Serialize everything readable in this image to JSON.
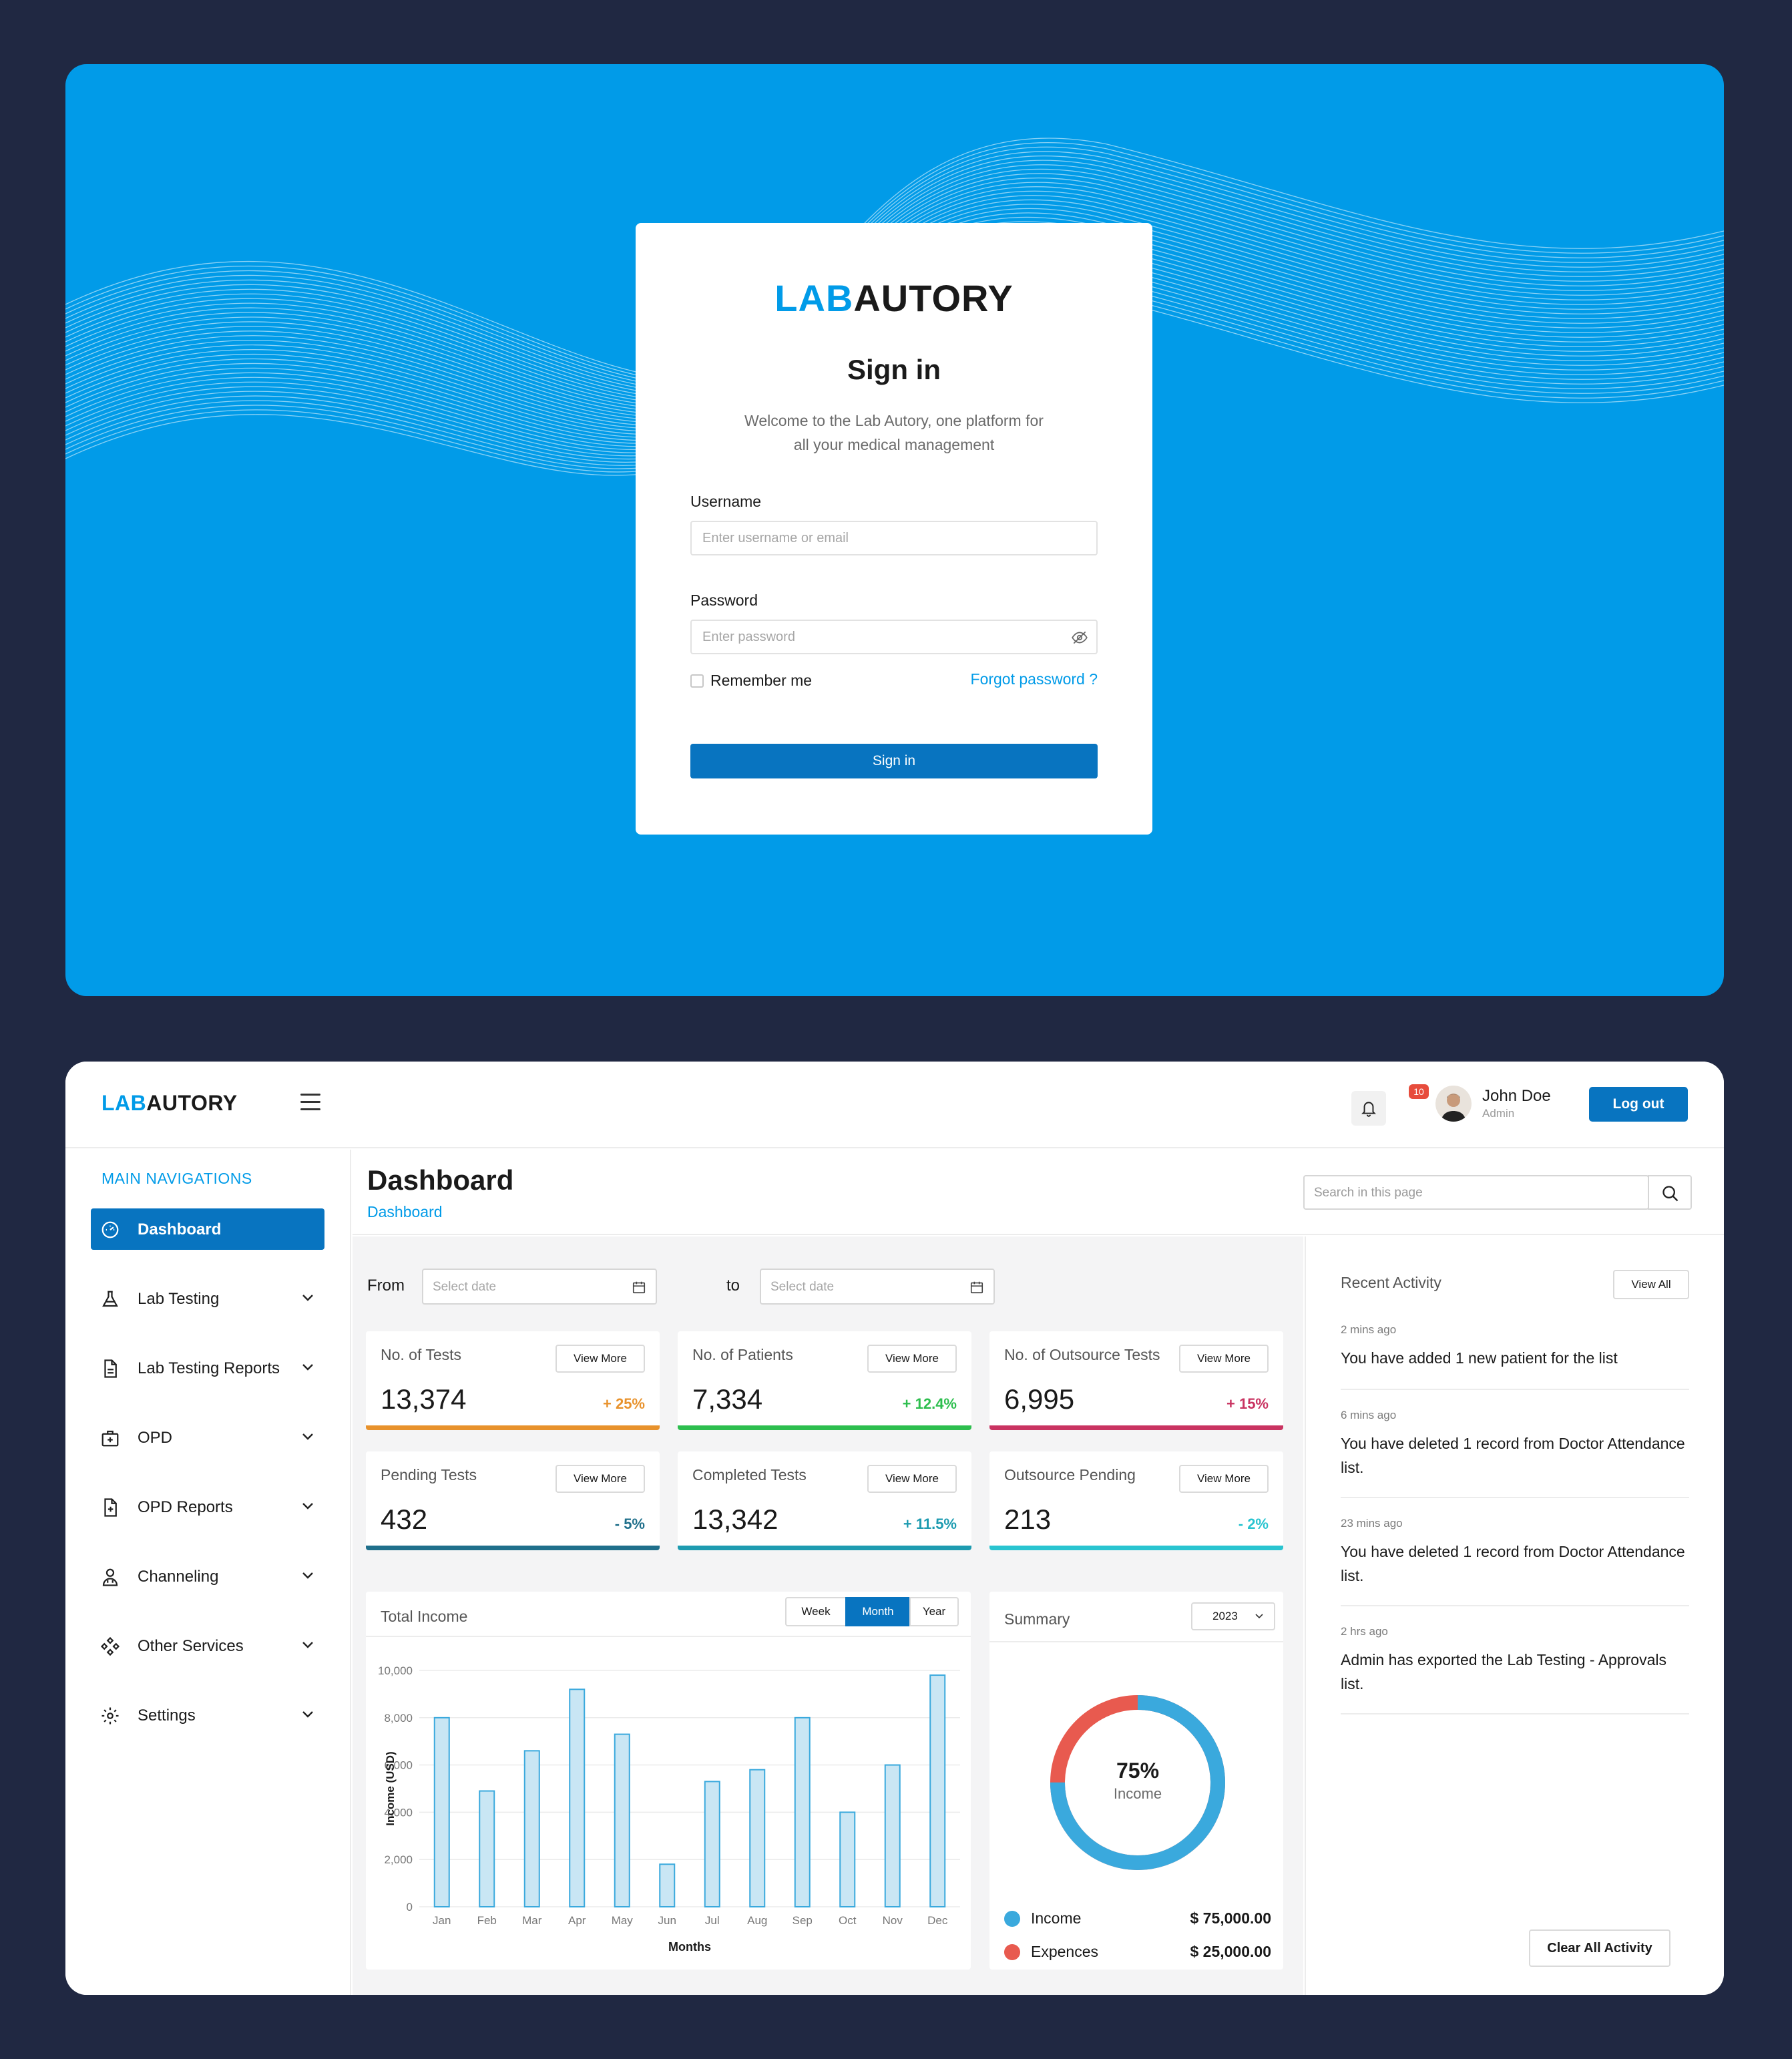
{
  "brand": {
    "lab": "LAB",
    "autory": "AUTORY"
  },
  "login": {
    "title": "Sign in",
    "subtitle_line1": "Welcome to the Lab Autory, one platform for",
    "subtitle_line2": "all your medical management",
    "username_label": "Username",
    "username_placeholder": "Enter username or email",
    "password_label": "Password",
    "password_placeholder": "Enter password",
    "remember_label": "Remember me",
    "forgot_label": "Forgot password ?",
    "signin_button": "Sign in"
  },
  "header": {
    "notification_count": "10",
    "user_name": "John Doe",
    "user_role": "Admin",
    "logout_label": "Log out"
  },
  "sidebar": {
    "heading": "MAIN NAVIGATIONS",
    "items": [
      {
        "label": "Dashboard",
        "icon": "speedometer-icon",
        "active": true
      },
      {
        "label": "Lab Testing",
        "icon": "flask-icon"
      },
      {
        "label": "Lab Testing Reports",
        "icon": "document-icon"
      },
      {
        "label": "OPD",
        "icon": "medical-kit-icon"
      },
      {
        "label": "OPD Reports",
        "icon": "report-plus-icon"
      },
      {
        "label": "Channeling",
        "icon": "doctor-icon"
      },
      {
        "label": "Other Services",
        "icon": "services-icon"
      },
      {
        "label": "Settings",
        "icon": "gear-icon"
      }
    ]
  },
  "page": {
    "title": "Dashboard",
    "breadcrumb": "Dashboard",
    "search_placeholder": "Search in this page"
  },
  "filters": {
    "from_label": "From",
    "to_label": "to",
    "from_placeholder": "Select date",
    "to_placeholder": "Select date"
  },
  "stats": [
    {
      "title": "No. of Tests",
      "value": "13,374",
      "change": "+ 25%",
      "color": "#e8922c",
      "button": "View More"
    },
    {
      "title": "No. of Patients",
      "value": "7,334",
      "change": "+ 12.4%",
      "color": "#2dbe4e",
      "button": "View More"
    },
    {
      "title": "No. of Outsource Tests",
      "value": "6,995",
      "change": "+ 15%",
      "color": "#c93361",
      "button": "View More"
    },
    {
      "title": "Pending Tests",
      "value": "432",
      "change": "- 5%",
      "color": "#1f6f8b",
      "button": "View More"
    },
    {
      "title": "Completed Tests",
      "value": "13,342",
      "change": "+ 11.5%",
      "color": "#1d9bb0",
      "button": "View More"
    },
    {
      "title": "Outsource Pending",
      "value": "213",
      "change": "- 2%",
      "color": "#29c4d0",
      "button": "View More"
    }
  ],
  "income": {
    "title": "Total Income",
    "tabs": [
      "Week",
      "Month",
      "Year"
    ],
    "active_tab": "Month"
  },
  "chart_data": {
    "type": "bar",
    "categories": [
      "Jan",
      "Feb",
      "Mar",
      "Apr",
      "May",
      "Jun",
      "Jul",
      "Aug",
      "Sep",
      "Oct",
      "Nov",
      "Dec"
    ],
    "values": [
      8000,
      4900,
      6600,
      9200,
      7300,
      1800,
      5300,
      5800,
      8000,
      4000,
      6000,
      9800
    ],
    "xlabel": "Months",
    "ylabel": "Income (USD)",
    "ylim": [
      0,
      10000
    ],
    "yticks": [
      "0",
      "2,000",
      "4,000",
      "6,000",
      "8,000",
      "10,000"
    ],
    "bar_fill": "#c9e6f4",
    "bar_stroke": "#3aa9dd"
  },
  "summary": {
    "title": "Summary",
    "year": "2023",
    "center_pct": "75%",
    "center_label": "Income",
    "income_fraction": 0.75,
    "legend": [
      {
        "name": "Income",
        "value": "$ 75,000.00",
        "color": "#3aa9dd"
      },
      {
        "name": "Expences",
        "value": "$ 25,000.00",
        "color": "#e85a4f"
      }
    ]
  },
  "activity": {
    "title": "Recent Activity",
    "view_all": "View All",
    "items": [
      {
        "time": "2 mins ago",
        "text": "You have added 1 new patient for the list"
      },
      {
        "time": "6 mins ago",
        "text": "You have deleted 1 record from Doctor Attendance  list."
      },
      {
        "time": "23 mins ago",
        "text": "You have deleted 1 record from Doctor Attendance  list."
      },
      {
        "time": "2 hrs ago",
        "text": "Admin has exported the Lab Testing - Approvals list."
      }
    ],
    "clear_label": "Clear All Activity"
  }
}
